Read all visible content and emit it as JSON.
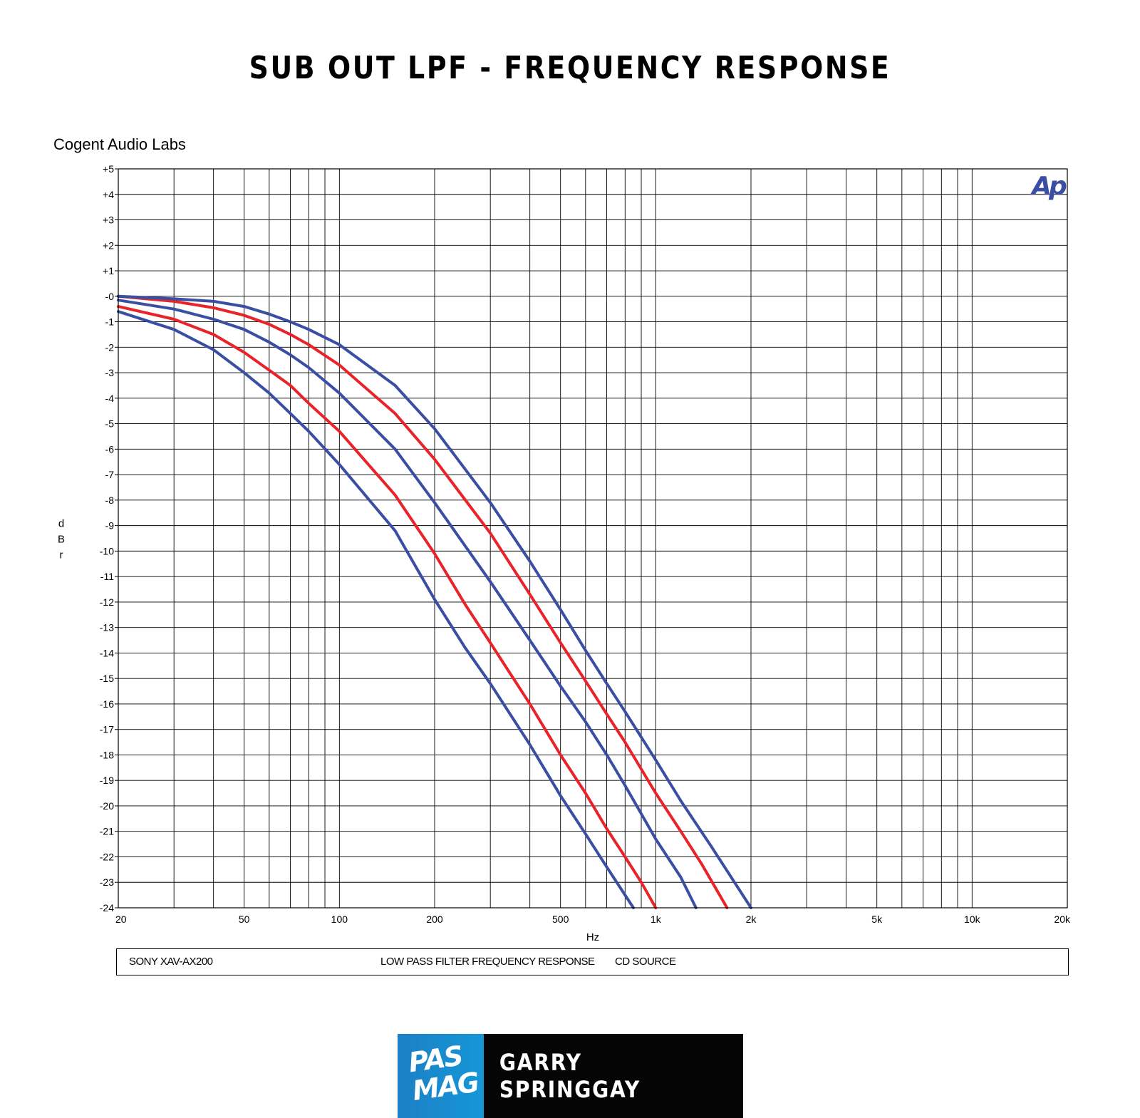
{
  "page": {
    "title": "SUB OUT LPF - FREQUENCY RESPONSE",
    "brand": "Cogent Audio Labs",
    "ap_logo": "Ap",
    "footer": {
      "left": "SONY XAV-AX200",
      "middle": "LOW PASS FILTER FREQUENCY RESPONSE",
      "right": "CD SOURCE"
    },
    "logo": {
      "pas": "PAS",
      "mag": "MAG",
      "author": "GARRY SPRINGGAY"
    }
  },
  "colors": {
    "blue_series": "#3a4fa3",
    "red_series": "#e8232a",
    "grid": "#000000",
    "ap_logo": "#3a4fa3"
  },
  "chart_data": {
    "type": "line",
    "xscale": "log",
    "xlim": [
      20,
      20000
    ],
    "ylim": [
      -24,
      5
    ],
    "xlabel": "Hz",
    "ylabel": "dBr",
    "grid": true,
    "x_ticks": [
      {
        "value": 20,
        "label": "20"
      },
      {
        "value": 50,
        "label": "50"
      },
      {
        "value": 100,
        "label": "100"
      },
      {
        "value": 200,
        "label": "200"
      },
      {
        "value": 500,
        "label": "500"
      },
      {
        "value": 1000,
        "label": "1k"
      },
      {
        "value": 2000,
        "label": "2k"
      },
      {
        "value": 5000,
        "label": "5k"
      },
      {
        "value": 10000,
        "label": "10k"
      },
      {
        "value": 20000,
        "label": "20k"
      }
    ],
    "x_minor_grid": [
      30,
      40,
      60,
      70,
      80,
      90,
      300,
      400,
      600,
      700,
      800,
      900,
      3000,
      4000,
      6000,
      7000,
      8000,
      9000
    ],
    "y_ticks": [
      {
        "value": 5,
        "label": "+5"
      },
      {
        "value": 4,
        "label": "+4"
      },
      {
        "value": 3,
        "label": "+3"
      },
      {
        "value": 2,
        "label": "+2"
      },
      {
        "value": 1,
        "label": "+1"
      },
      {
        "value": 0,
        "label": "-0"
      },
      {
        "value": -1,
        "label": "-1"
      },
      {
        "value": -2,
        "label": "-2"
      },
      {
        "value": -3,
        "label": "-3"
      },
      {
        "value": -4,
        "label": "-4"
      },
      {
        "value": -5,
        "label": "-5"
      },
      {
        "value": -6,
        "label": "-6"
      },
      {
        "value": -7,
        "label": "-7"
      },
      {
        "value": -8,
        "label": "-8"
      },
      {
        "value": -9,
        "label": "-9"
      },
      {
        "value": -10,
        "label": "-10"
      },
      {
        "value": -11,
        "label": "-11"
      },
      {
        "value": -12,
        "label": "-12"
      },
      {
        "value": -13,
        "label": "-13"
      },
      {
        "value": -14,
        "label": "-14"
      },
      {
        "value": -15,
        "label": "-15"
      },
      {
        "value": -16,
        "label": "-16"
      },
      {
        "value": -17,
        "label": "-17"
      },
      {
        "value": -18,
        "label": "-18"
      },
      {
        "value": -19,
        "label": "-19"
      },
      {
        "value": -20,
        "label": "-20"
      },
      {
        "value": -21,
        "label": "-21"
      },
      {
        "value": -22,
        "label": "-22"
      },
      {
        "value": -23,
        "label": "-23"
      },
      {
        "value": -24,
        "label": "-24"
      }
    ],
    "series": [
      {
        "color": "blue",
        "x": [
          20,
          30,
          40,
          50,
          60,
          70,
          80,
          100,
          150,
          200,
          250,
          300,
          400,
          500,
          600,
          700,
          800,
          850
        ],
        "y": [
          -0.6,
          -1.3,
          -2.1,
          -3.0,
          -3.8,
          -4.6,
          -5.3,
          -6.6,
          -9.2,
          -11.9,
          -13.8,
          -15.2,
          -17.6,
          -19.6,
          -21.1,
          -22.4,
          -23.5,
          -24.0
        ]
      },
      {
        "color": "red",
        "x": [
          20,
          30,
          40,
          50,
          60,
          70,
          80,
          100,
          150,
          200,
          250,
          300,
          400,
          500,
          600,
          700,
          800,
          900,
          1000
        ],
        "y": [
          -0.4,
          -0.9,
          -1.5,
          -2.2,
          -2.9,
          -3.5,
          -4.2,
          -5.3,
          -7.8,
          -10.1,
          -12.1,
          -13.6,
          -16.0,
          -18.0,
          -19.5,
          -20.9,
          -22.0,
          -23.0,
          -24.0
        ]
      },
      {
        "color": "blue",
        "x": [
          20,
          30,
          40,
          50,
          60,
          70,
          80,
          100,
          150,
          200,
          300,
          400,
          500,
          600,
          700,
          800,
          1000,
          1200,
          1340
        ],
        "y": [
          -0.15,
          -0.5,
          -0.9,
          -1.3,
          -1.8,
          -2.3,
          -2.8,
          -3.8,
          -6.0,
          -8.1,
          -11.2,
          -13.5,
          -15.3,
          -16.7,
          -18.0,
          -19.2,
          -21.3,
          -22.8,
          -24.0
        ]
      },
      {
        "color": "red",
        "x": [
          20,
          30,
          40,
          50,
          60,
          70,
          80,
          100,
          150,
          200,
          300,
          400,
          500,
          600,
          700,
          800,
          1000,
          1200,
          1400,
          1680
        ],
        "y": [
          0.0,
          -0.2,
          -0.45,
          -0.75,
          -1.1,
          -1.5,
          -1.9,
          -2.7,
          -4.6,
          -6.4,
          -9.3,
          -11.7,
          -13.6,
          -15.1,
          -16.4,
          -17.5,
          -19.5,
          -21.0,
          -22.3,
          -24.0
        ]
      },
      {
        "color": "blue",
        "x": [
          20,
          30,
          40,
          50,
          60,
          70,
          80,
          100,
          150,
          200,
          300,
          400,
          500,
          600,
          700,
          800,
          1000,
          1200,
          1500,
          2000
        ],
        "y": [
          0.0,
          -0.1,
          -0.2,
          -0.4,
          -0.7,
          -1.0,
          -1.3,
          -1.9,
          -3.5,
          -5.2,
          -8.1,
          -10.4,
          -12.3,
          -13.9,
          -15.2,
          -16.3,
          -18.2,
          -19.8,
          -21.6,
          -24.0
        ]
      }
    ]
  }
}
